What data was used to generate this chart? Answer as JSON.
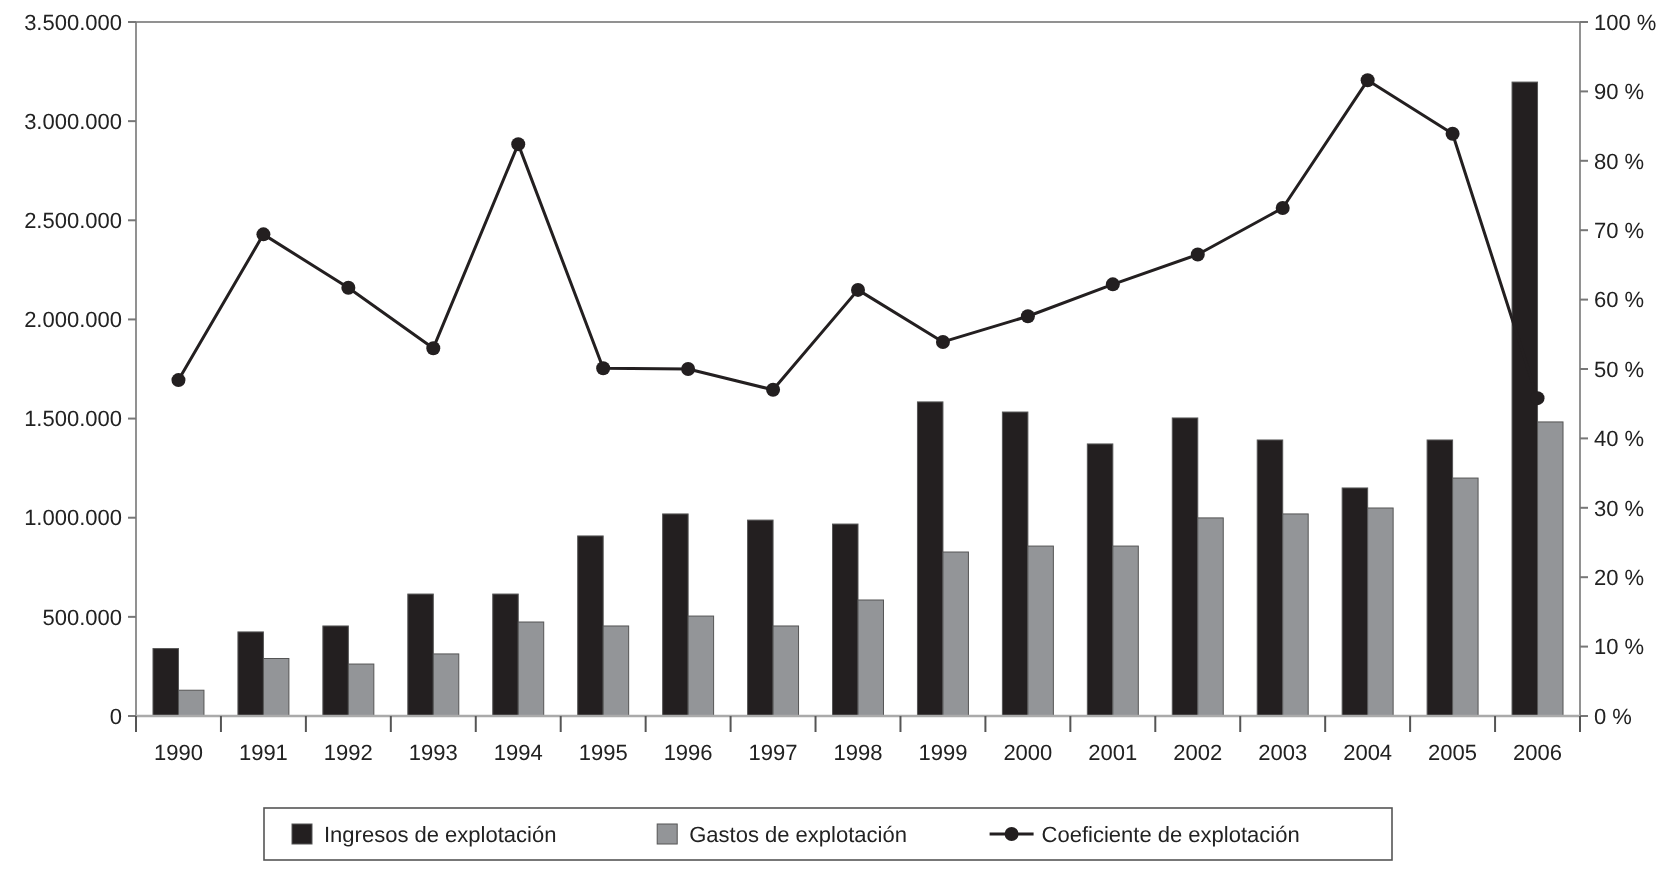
{
  "chart_data": {
    "type": "bar",
    "categories": [
      "1990",
      "1991",
      "1992",
      "1993",
      "1994",
      "1995",
      "1996",
      "1997",
      "1998",
      "1999",
      "2000",
      "2001",
      "2002",
      "2003",
      "2004",
      "2005",
      "2006"
    ],
    "series": [
      {
        "name": "Ingresos de explotación",
        "color": "#231f20",
        "values": [
          340000,
          424000,
          454000,
          615000,
          615000,
          908000,
          1019000,
          988000,
          968000,
          1584000,
          1533000,
          1372000,
          1503000,
          1392000,
          1150000,
          1392000,
          3197000
        ]
      },
      {
        "name": "Gastos de explotación",
        "color": "#939598",
        "values": [
          130000,
          290000,
          262000,
          313000,
          474000,
          454000,
          504000,
          454000,
          585000,
          827000,
          857000,
          857000,
          999000,
          1019000,
          1049000,
          1200000,
          1483000
        ]
      },
      {
        "name": "Coeficiente de explotación",
        "type": "line",
        "axis": "y2",
        "color": "#231f20",
        "marker": "circle",
        "values": [
          48.4,
          69.4,
          61.7,
          53,
          82.4,
          50.1,
          50,
          47,
          61.4,
          53.9,
          57.6,
          62.2,
          66.5,
          73.2,
          91.6,
          83.9,
          45.8
        ]
      }
    ],
    "ylim": [
      0,
      3500000
    ],
    "yticks": [
      {
        "value": 0,
        "label": "0"
      },
      {
        "value": 500000,
        "label": "500.000"
      },
      {
        "value": 1000000,
        "label": "1.000.000"
      },
      {
        "value": 1500000,
        "label": "1.500.000"
      },
      {
        "value": 2000000,
        "label": "2.000.000"
      },
      {
        "value": 2500000,
        "label": "2.500.000"
      },
      {
        "value": 3000000,
        "label": "3.000.000"
      },
      {
        "value": 3500000,
        "label": "3.500.000"
      }
    ],
    "y2lim": [
      0,
      100
    ],
    "y2ticks": [
      {
        "value": 0,
        "label": "0 %"
      },
      {
        "value": 10,
        "label": "10 %"
      },
      {
        "value": 20,
        "label": "20 %"
      },
      {
        "value": 30,
        "label": "30 %"
      },
      {
        "value": 40,
        "label": "40 %"
      },
      {
        "value": 50,
        "label": "50 %"
      },
      {
        "value": 60,
        "label": "60 %"
      },
      {
        "value": 70,
        "label": "70 %"
      },
      {
        "value": 80,
        "label": "80 %"
      },
      {
        "value": 90,
        "label": "90 %"
      },
      {
        "value": 100,
        "label": "100 %"
      }
    ],
    "grid": false,
    "legend": "bottom"
  }
}
